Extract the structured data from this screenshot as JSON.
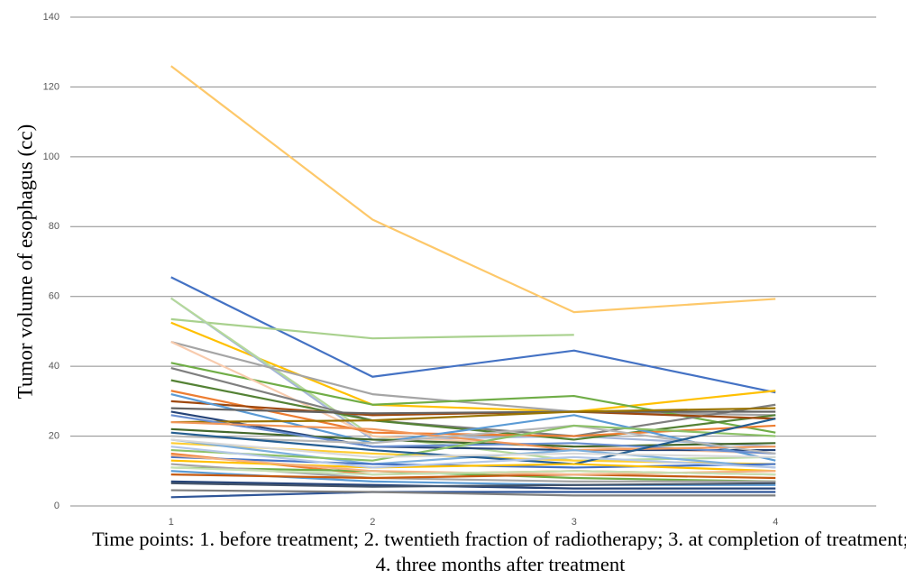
{
  "chart_data": {
    "type": "line",
    "y_label": "Tumor volume of esophagus (cc)",
    "x_label": "Time points: 1. before treatment; 2. twentieth fraction of radiotherapy; 3. at completion of treatment; 4. three months after treatment",
    "categories": [
      "1",
      "2",
      "3",
      "4"
    ],
    "ylim": [
      0,
      140
    ],
    "yticks": [
      0,
      20,
      40,
      60,
      80,
      100,
      120,
      140
    ],
    "grid": true,
    "series": [
      {
        "color": "#fdc86a",
        "values": [
          126,
          82,
          55.5,
          59.3
        ]
      },
      {
        "color": "#4472c4",
        "values": [
          65.5,
          37,
          44.5,
          32.5
        ]
      },
      {
        "color": "#a9d18e",
        "values": [
          53.5,
          48,
          49,
          null
        ]
      },
      {
        "color": "#ffc000",
        "values": [
          52.5,
          29,
          27,
          33
        ]
      },
      {
        "color": "#a5b6d8",
        "values": [
          59.5,
          19,
          20,
          17
        ]
      },
      {
        "color": "#b5d99c",
        "values": [
          59.5,
          20,
          13,
          14
        ]
      },
      {
        "color": "#a5a5a5",
        "values": [
          47,
          32,
          27,
          26
        ]
      },
      {
        "color": "#70ad47",
        "values": [
          41,
          29,
          31.5,
          21
        ]
      },
      {
        "color": "#f8cbad",
        "values": [
          47,
          20,
          17,
          15
        ]
      },
      {
        "color": "#7f7f7f",
        "values": [
          39.5,
          24.5,
          20,
          29
        ]
      },
      {
        "color": "#548235",
        "values": [
          36,
          24.5,
          19,
          26
        ]
      },
      {
        "color": "#ed7d31",
        "values": [
          33,
          21,
          20,
          23
        ]
      },
      {
        "color": "#264478",
        "values": [
          27,
          17,
          16,
          16
        ]
      },
      {
        "color": "#9e480e",
        "values": [
          30,
          26,
          27,
          25
        ]
      },
      {
        "color": "#5b9bd5",
        "values": [
          32,
          18,
          26,
          13
        ]
      },
      {
        "color": "#636363",
        "values": [
          28,
          26.5,
          27,
          27
        ]
      },
      {
        "color": "#997300",
        "values": [
          24,
          24.5,
          27,
          28
        ]
      },
      {
        "color": "#43682b",
        "values": [
          22,
          19,
          17,
          18
        ]
      },
      {
        "color": "#698ed0",
        "values": [
          26,
          17,
          18,
          15
        ]
      },
      {
        "color": "#f1975a",
        "values": [
          24,
          22,
          16,
          17
        ]
      },
      {
        "color": "#b7b7b7",
        "values": [
          20,
          18,
          23,
          15
        ]
      },
      {
        "color": "#ffcd33",
        "values": [
          18,
          15,
          13,
          12
        ]
      },
      {
        "color": "#7cafdd",
        "values": [
          19,
          12,
          16,
          11
        ]
      },
      {
        "color": "#8cc168",
        "values": [
          16,
          13,
          23,
          20
        ]
      },
      {
        "color": "#255e91",
        "values": [
          21,
          16,
          12,
          25
        ]
      },
      {
        "color": "#ed7d31",
        "values": [
          15,
          9,
          10,
          9
        ]
      },
      {
        "color": "#4472c4",
        "values": [
          14,
          12,
          11,
          12
        ]
      },
      {
        "color": "#70ad47",
        "values": [
          11,
          10,
          8,
          7
        ]
      },
      {
        "color": "#a5a5a5",
        "values": [
          12,
          8,
          7,
          7
        ]
      },
      {
        "color": "#ffc000",
        "values": [
          13,
          11,
          12,
          10
        ]
      },
      {
        "color": "#5b9bd5",
        "values": [
          10,
          7,
          6,
          6
        ]
      },
      {
        "color": "#c55a11",
        "values": [
          9,
          8,
          9,
          8
        ]
      },
      {
        "color": "#264478",
        "values": [
          7,
          6,
          5,
          5
        ]
      },
      {
        "color": "#44546a",
        "values": [
          6.5,
          5.5,
          6,
          6.5
        ]
      },
      {
        "color": "#2f5597",
        "values": [
          2.5,
          4,
          4,
          4
        ]
      },
      {
        "color": "#7f7f7f",
        "values": [
          4.5,
          4,
          3,
          3
        ]
      },
      {
        "color": "#b4c7e7",
        "values": [
          17,
          11,
          14,
          11
        ]
      },
      {
        "color": "#f4b183",
        "values": [
          14.5,
          10,
          9,
          10
        ]
      },
      {
        "color": "#c5e0b4",
        "values": [
          11,
          9,
          10,
          9
        ]
      },
      {
        "color": "#d9d9d9",
        "values": [
          19,
          14,
          15,
          14
        ]
      }
    ]
  }
}
